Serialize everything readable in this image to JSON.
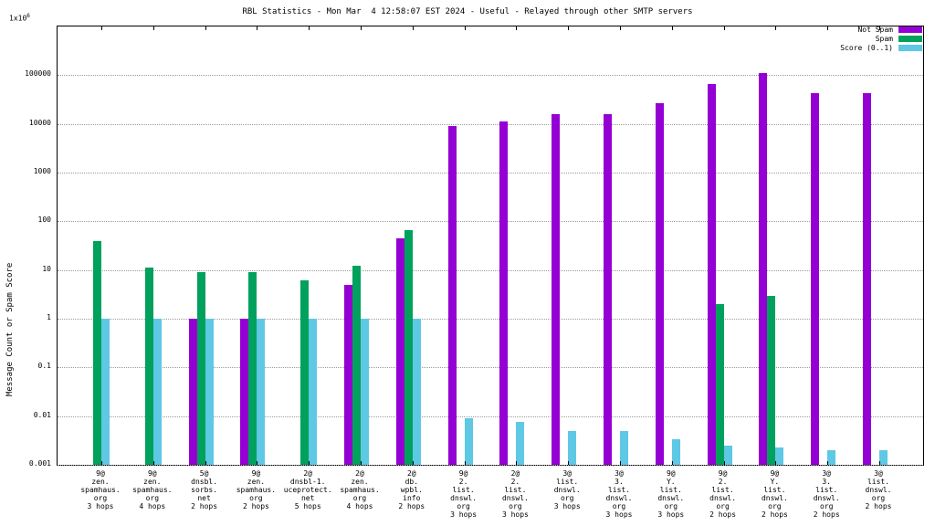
{
  "title": "RBL Statistics - Mon Mar  4 12:58:07 EST 2024 - Useful - Relayed through other SMTP servers",
  "chart_data": {
    "type": "bar",
    "title": "RBL Statistics - Mon Mar  4 12:58:07 EST 2024 - Useful - Relayed through other SMTP servers",
    "ylabel": "Message Count or Spam Score",
    "y_scale": "log",
    "ylim": [
      0.001,
      1000000
    ],
    "y_top_base": "1x10",
    "y_top_exp": "6",
    "y_ticks": [
      {
        "value": 100000,
        "label": "100000"
      },
      {
        "value": 10000,
        "label": "10000"
      },
      {
        "value": 1000,
        "label": "1000"
      },
      {
        "value": 100,
        "label": "100"
      },
      {
        "value": 10,
        "label": "10"
      },
      {
        "value": 1,
        "label": "1"
      },
      {
        "value": 0.1,
        "label": "0.1"
      },
      {
        "value": 0.01,
        "label": "0.01"
      },
      {
        "value": 0.001,
        "label": "0.001"
      }
    ],
    "grid": true,
    "legend_position": "top-right",
    "legend": [
      {
        "name": "Not Spam",
        "color": "#9400d3"
      },
      {
        "name": "Spam",
        "color": "#00a15c"
      },
      {
        "name": "Score (0..1)",
        "color": "#5ec8e5"
      }
    ],
    "categories": [
      [
        "9@",
        "zen.",
        "spamhaus.",
        "org",
        "3 hops"
      ],
      [
        "9@",
        "zen.",
        "spamhaus.",
        "org",
        "4 hops"
      ],
      [
        "5@",
        "dnsbl.",
        "sorbs.",
        "net",
        "2 hops"
      ],
      [
        "9@",
        "zen.",
        "spamhaus.",
        "org",
        "2 hops"
      ],
      [
        "2@",
        "dnsbl-1.",
        "uceprotect.",
        "net",
        "5 hops"
      ],
      [
        "2@",
        "zen.",
        "spamhaus.",
        "org",
        "4 hops"
      ],
      [
        "2@",
        "db.",
        "wpbl.",
        "info",
        "2 hops"
      ],
      [
        "9@",
        "2.",
        "list.",
        "dnswl.",
        "org",
        "3 hops"
      ],
      [
        "2@",
        "2.",
        "list.",
        "dnswl.",
        "org",
        "3 hops"
      ],
      [
        "3@",
        "list.",
        "dnswl.",
        "org",
        "3 hops"
      ],
      [
        "3@",
        "3.",
        "list.",
        "dnswl.",
        "org",
        "3 hops"
      ],
      [
        "9@",
        "Y.",
        "list.",
        "dnswl.",
        "org",
        "3 hops"
      ],
      [
        "9@",
        "2.",
        "list.",
        "dnswl.",
        "org",
        "2 hops"
      ],
      [
        "9@",
        "Y.",
        "list.",
        "dnswl.",
        "org",
        "2 hops"
      ],
      [
        "3@",
        "3.",
        "list.",
        "dnswl.",
        "org",
        "2 hops"
      ],
      [
        "3@",
        "list.",
        "dnswl.",
        "org",
        "2 hops"
      ]
    ],
    "series": [
      {
        "name": "Not Spam",
        "color": "#9400d3",
        "values": [
          null,
          null,
          1,
          1,
          null,
          5,
          45,
          9000,
          11000,
          16000,
          16000,
          27000,
          65000,
          110000,
          42000,
          42000
        ]
      },
      {
        "name": "Spam",
        "color": "#00a15c",
        "values": [
          40,
          11,
          9,
          9,
          6,
          12,
          65,
          null,
          null,
          null,
          null,
          null,
          2,
          3,
          null,
          null
        ]
      },
      {
        "name": "Score (0..1)",
        "color": "#5ec8e5",
        "values": [
          1,
          1,
          1,
          1,
          1,
          1,
          1,
          0.009,
          0.0075,
          0.005,
          0.005,
          0.0033,
          0.0025,
          0.0023,
          0.002,
          0.002
        ]
      }
    ]
  }
}
